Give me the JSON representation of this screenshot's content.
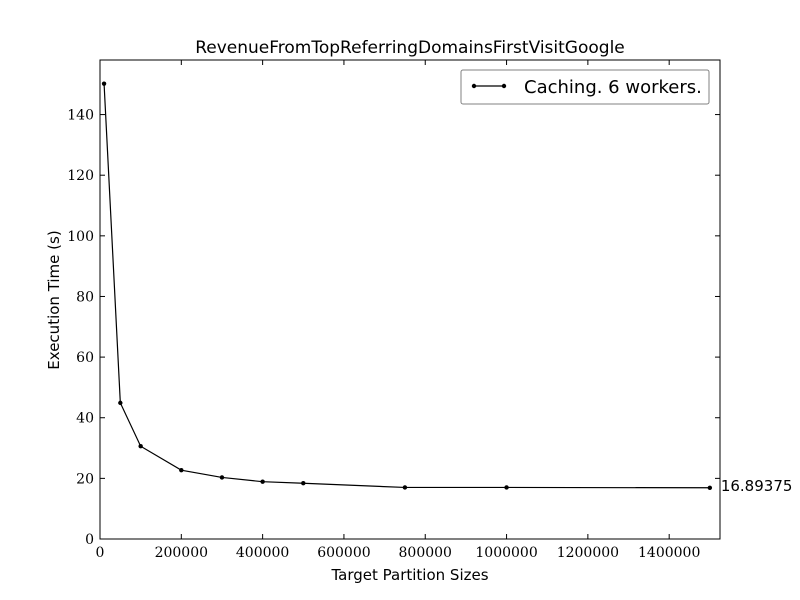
{
  "chart_data": {
    "type": "line",
    "title": "RevenueFromTopReferringDomainsFirstVisitGoogle",
    "xlabel": "Target Partition Sizes",
    "ylabel": "Execution Time (s)",
    "xlim": [
      0,
      1525000
    ],
    "ylim": [
      0,
      158
    ],
    "xticks": [
      0,
      200000,
      400000,
      600000,
      800000,
      1000000,
      1200000,
      1400000
    ],
    "yticks": [
      0,
      20,
      40,
      60,
      80,
      100,
      120,
      140
    ],
    "grid": false,
    "legend_position": "top-right",
    "series": [
      {
        "name": "Caching. 6 workers.",
        "color": "#000000",
        "x": [
          10000,
          50000,
          100000,
          200000,
          300000,
          400000,
          500000,
          750000,
          1000000,
          1500000
        ],
        "y": [
          150.2,
          44.9,
          30.6,
          22.7,
          20.3,
          18.9,
          18.4,
          17.0,
          17.0,
          16.89375
        ]
      }
    ],
    "annotations": [
      {
        "text": "16.89375",
        "x": 1500000,
        "y": 16.89375
      }
    ]
  }
}
